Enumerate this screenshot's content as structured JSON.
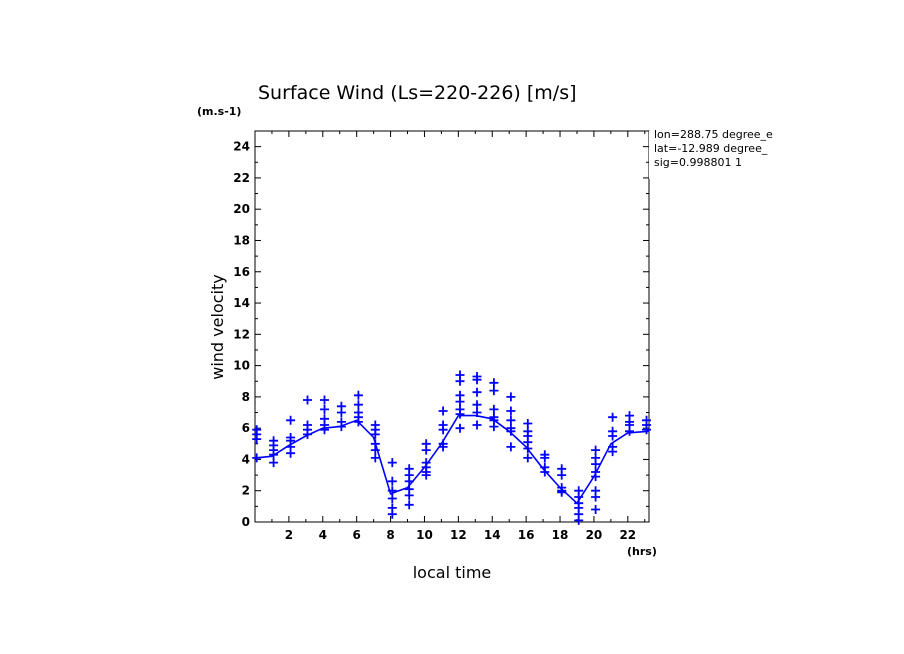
{
  "chart_data": {
    "type": "line",
    "title": "Surface Wind  (Ls=220-226) [m/s]",
    "xlabel": "local time",
    "xunit": "(hrs)",
    "ylabel": "wind velocity",
    "yunit": "(m.s-1)",
    "xlim": [
      0,
      23.25
    ],
    "ylim": [
      0,
      25
    ],
    "xticks": [
      2,
      4,
      6,
      8,
      10,
      12,
      14,
      16,
      18,
      20,
      22
    ],
    "yticks": [
      0,
      2,
      4,
      6,
      8,
      10,
      12,
      14,
      16,
      18,
      20,
      22,
      24
    ],
    "grid": false,
    "color": "#0000ff",
    "annotation_lines": [
      "lon=288.75 degree_e",
      "lat=-12.989 degree_",
      "sig=0.998801 1"
    ],
    "series": [
      {
        "kind": "line",
        "x": [
          0,
          1,
          2,
          3,
          4,
          5,
          6,
          7,
          8,
          9,
          10,
          11,
          12,
          13,
          14,
          15,
          16,
          17,
          18,
          19,
          20,
          21,
          22,
          23.25
        ],
        "values": [
          4.1,
          4.2,
          4.9,
          5.5,
          6.0,
          6.1,
          6.5,
          5.4,
          1.8,
          2.2,
          3.5,
          5.0,
          6.8,
          6.8,
          6.6,
          5.8,
          4.8,
          3.4,
          2.2,
          1.2,
          2.9,
          5.0,
          5.7,
          5.8
        ]
      },
      {
        "kind": "scatter",
        "marker": "+",
        "points": [
          [
            0.1,
            5.9
          ],
          [
            0.1,
            5.6
          ],
          [
            0.1,
            5.3
          ],
          [
            0.1,
            4.1
          ],
          [
            1.1,
            5.2
          ],
          [
            1.1,
            4.9
          ],
          [
            1.1,
            4.6
          ],
          [
            1.1,
            4.3
          ],
          [
            1.1,
            3.8
          ],
          [
            2.1,
            6.5
          ],
          [
            2.1,
            5.4
          ],
          [
            2.1,
            5.2
          ],
          [
            2.1,
            4.8
          ],
          [
            2.1,
            4.4
          ],
          [
            3.1,
            7.8
          ],
          [
            3.1,
            6.2
          ],
          [
            3.1,
            5.9
          ],
          [
            3.1,
            5.6
          ],
          [
            4.1,
            7.8
          ],
          [
            4.1,
            7.2
          ],
          [
            4.1,
            6.6
          ],
          [
            4.1,
            6.2
          ],
          [
            4.1,
            5.9
          ],
          [
            5.1,
            7.4
          ],
          [
            5.1,
            7.0
          ],
          [
            5.1,
            6.4
          ],
          [
            5.1,
            6.1
          ],
          [
            6.1,
            8.1
          ],
          [
            6.1,
            7.5
          ],
          [
            6.1,
            7.0
          ],
          [
            6.1,
            6.7
          ],
          [
            6.1,
            6.4
          ],
          [
            7.1,
            6.2
          ],
          [
            7.1,
            5.9
          ],
          [
            7.1,
            5.6
          ],
          [
            7.1,
            5.0
          ],
          [
            7.1,
            4.6
          ],
          [
            7.1,
            4.1
          ],
          [
            8.1,
            3.8
          ],
          [
            8.1,
            2.6
          ],
          [
            8.1,
            2.0
          ],
          [
            8.1,
            1.5
          ],
          [
            8.1,
            0.9
          ],
          [
            8.1,
            0.5
          ],
          [
            9.1,
            3.4
          ],
          [
            9.1,
            3.0
          ],
          [
            9.1,
            2.6
          ],
          [
            9.1,
            2.1
          ],
          [
            9.1,
            1.7
          ],
          [
            9.1,
            1.1
          ],
          [
            10.1,
            5.0
          ],
          [
            10.1,
            4.6
          ],
          [
            10.1,
            3.8
          ],
          [
            10.1,
            3.5
          ],
          [
            10.1,
            3.2
          ],
          [
            10.1,
            3.0
          ],
          [
            11.1,
            7.1
          ],
          [
            11.1,
            6.2
          ],
          [
            11.1,
            5.9
          ],
          [
            11.1,
            5.0
          ],
          [
            11.1,
            4.8
          ],
          [
            12.1,
            9.4
          ],
          [
            12.1,
            9.0
          ],
          [
            12.1,
            8.1
          ],
          [
            12.1,
            7.7
          ],
          [
            12.1,
            7.2
          ],
          [
            12.1,
            6.9
          ],
          [
            12.1,
            6.0
          ],
          [
            13.1,
            9.3
          ],
          [
            13.1,
            9.1
          ],
          [
            13.1,
            8.3
          ],
          [
            13.1,
            7.5
          ],
          [
            13.1,
            7.0
          ],
          [
            13.1,
            6.2
          ],
          [
            14.1,
            8.9
          ],
          [
            14.1,
            8.4
          ],
          [
            14.1,
            7.2
          ],
          [
            14.1,
            6.7
          ],
          [
            14.1,
            6.5
          ],
          [
            14.1,
            6.1
          ],
          [
            15.1,
            8.0
          ],
          [
            15.1,
            7.1
          ],
          [
            15.1,
            6.5
          ],
          [
            15.1,
            6.0
          ],
          [
            15.1,
            5.8
          ],
          [
            15.1,
            4.8
          ],
          [
            16.1,
            6.3
          ],
          [
            16.1,
            5.8
          ],
          [
            16.1,
            5.5
          ],
          [
            16.1,
            5.1
          ],
          [
            16.1,
            4.7
          ],
          [
            16.1,
            4.1
          ],
          [
            17.1,
            4.3
          ],
          [
            17.1,
            4.1
          ],
          [
            17.1,
            3.5
          ],
          [
            17.1,
            3.2
          ],
          [
            18.1,
            3.4
          ],
          [
            18.1,
            3.0
          ],
          [
            18.1,
            2.2
          ],
          [
            18.1,
            2.0
          ],
          [
            18.1,
            1.9
          ],
          [
            19.1,
            2.0
          ],
          [
            19.1,
            1.6
          ],
          [
            19.1,
            1.2
          ],
          [
            19.1,
            0.9
          ],
          [
            19.1,
            0.5
          ],
          [
            19.1,
            0.1
          ],
          [
            20.1,
            4.6
          ],
          [
            20.1,
            4.1
          ],
          [
            20.1,
            3.7
          ],
          [
            20.1,
            3.2
          ],
          [
            20.1,
            2.9
          ],
          [
            20.1,
            2.0
          ],
          [
            20.1,
            1.6
          ],
          [
            20.1,
            0.8
          ],
          [
            21.1,
            6.7
          ],
          [
            21.1,
            5.8
          ],
          [
            21.1,
            5.5
          ],
          [
            21.1,
            4.8
          ],
          [
            21.1,
            4.5
          ],
          [
            22.1,
            6.8
          ],
          [
            22.1,
            6.4
          ],
          [
            22.1,
            6.2
          ],
          [
            22.1,
            5.8
          ],
          [
            23.1,
            6.5
          ],
          [
            23.1,
            6.2
          ],
          [
            23.1,
            5.9
          ]
        ]
      }
    ]
  }
}
